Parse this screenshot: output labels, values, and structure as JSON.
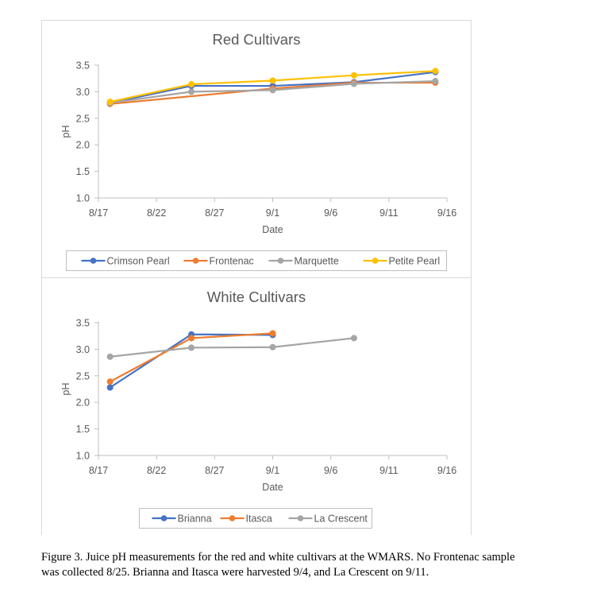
{
  "chart_data": [
    {
      "type": "line",
      "title": "Red Cultivars",
      "xlabel": "Date",
      "ylabel": "pH",
      "ylim": [
        1.0,
        3.5
      ],
      "yticks": [
        "1.0",
        "1.5",
        "2.0",
        "2.5",
        "3.0",
        "3.5"
      ],
      "xticks": [
        "8/17",
        "8/22",
        "8/27",
        "9/1",
        "9/6",
        "9/11",
        "9/16"
      ],
      "xlim_days": [
        0,
        30
      ],
      "grid": false,
      "legend_position": "bottom",
      "series": [
        {
          "name": "Crimson Pearl",
          "color": "#4472C4",
          "x": [
            "8/18",
            "8/25",
            "9/1",
            "9/8",
            "9/15"
          ],
          "values": [
            2.79,
            3.11,
            3.11,
            3.18,
            3.37
          ]
        },
        {
          "name": "Frontenac",
          "color": "#ED7D31",
          "x": [
            "8/18",
            "9/1",
            "9/8",
            "9/15"
          ],
          "values": [
            2.77,
            3.06,
            3.17,
            3.17
          ]
        },
        {
          "name": "Marquette",
          "color": "#A5A5A5",
          "x": [
            "8/18",
            "8/25",
            "9/1",
            "9/8",
            "9/15"
          ],
          "values": [
            2.79,
            3.0,
            3.03,
            3.15,
            3.2
          ]
        },
        {
          "name": "Petite Pearl",
          "color": "#FFC000",
          "x": [
            "8/18",
            "8/25",
            "9/1",
            "9/8",
            "9/15"
          ],
          "values": [
            2.81,
            3.14,
            3.21,
            3.31,
            3.39
          ]
        }
      ]
    },
    {
      "type": "line",
      "title": "White Cultivars",
      "xlabel": "Date",
      "ylabel": "pH",
      "ylim": [
        1.0,
        3.5
      ],
      "yticks": [
        "1.0",
        "1.5",
        "2.0",
        "2.5",
        "3.0",
        "3.5"
      ],
      "xticks": [
        "8/17",
        "8/22",
        "8/27",
        "9/1",
        "9/6",
        "9/11",
        "9/16"
      ],
      "xlim_days": [
        0,
        30
      ],
      "grid": false,
      "legend_position": "bottom",
      "series": [
        {
          "name": "Brianna",
          "color": "#4472C4",
          "x": [
            "8/18",
            "8/25",
            "9/1"
          ],
          "values": [
            2.28,
            3.28,
            3.27
          ]
        },
        {
          "name": "Itasca",
          "color": "#ED7D31",
          "x": [
            "8/18",
            "8/25",
            "9/1"
          ],
          "values": [
            2.39,
            3.21,
            3.3
          ]
        },
        {
          "name": "La Crescent",
          "color": "#A5A5A5",
          "x": [
            "8/18",
            "8/25",
            "9/1",
            "9/8"
          ],
          "values": [
            2.86,
            3.03,
            3.04,
            3.21
          ]
        }
      ]
    }
  ],
  "caption": {
    "line1": "Figure 3. Juice pH measurements for the red and white cultivars at the WMARS. No Frontenac sample",
    "line2": "was collected 8/25. Brianna and Itasca were harvested 9/4, and La Crescent on 9/11."
  }
}
